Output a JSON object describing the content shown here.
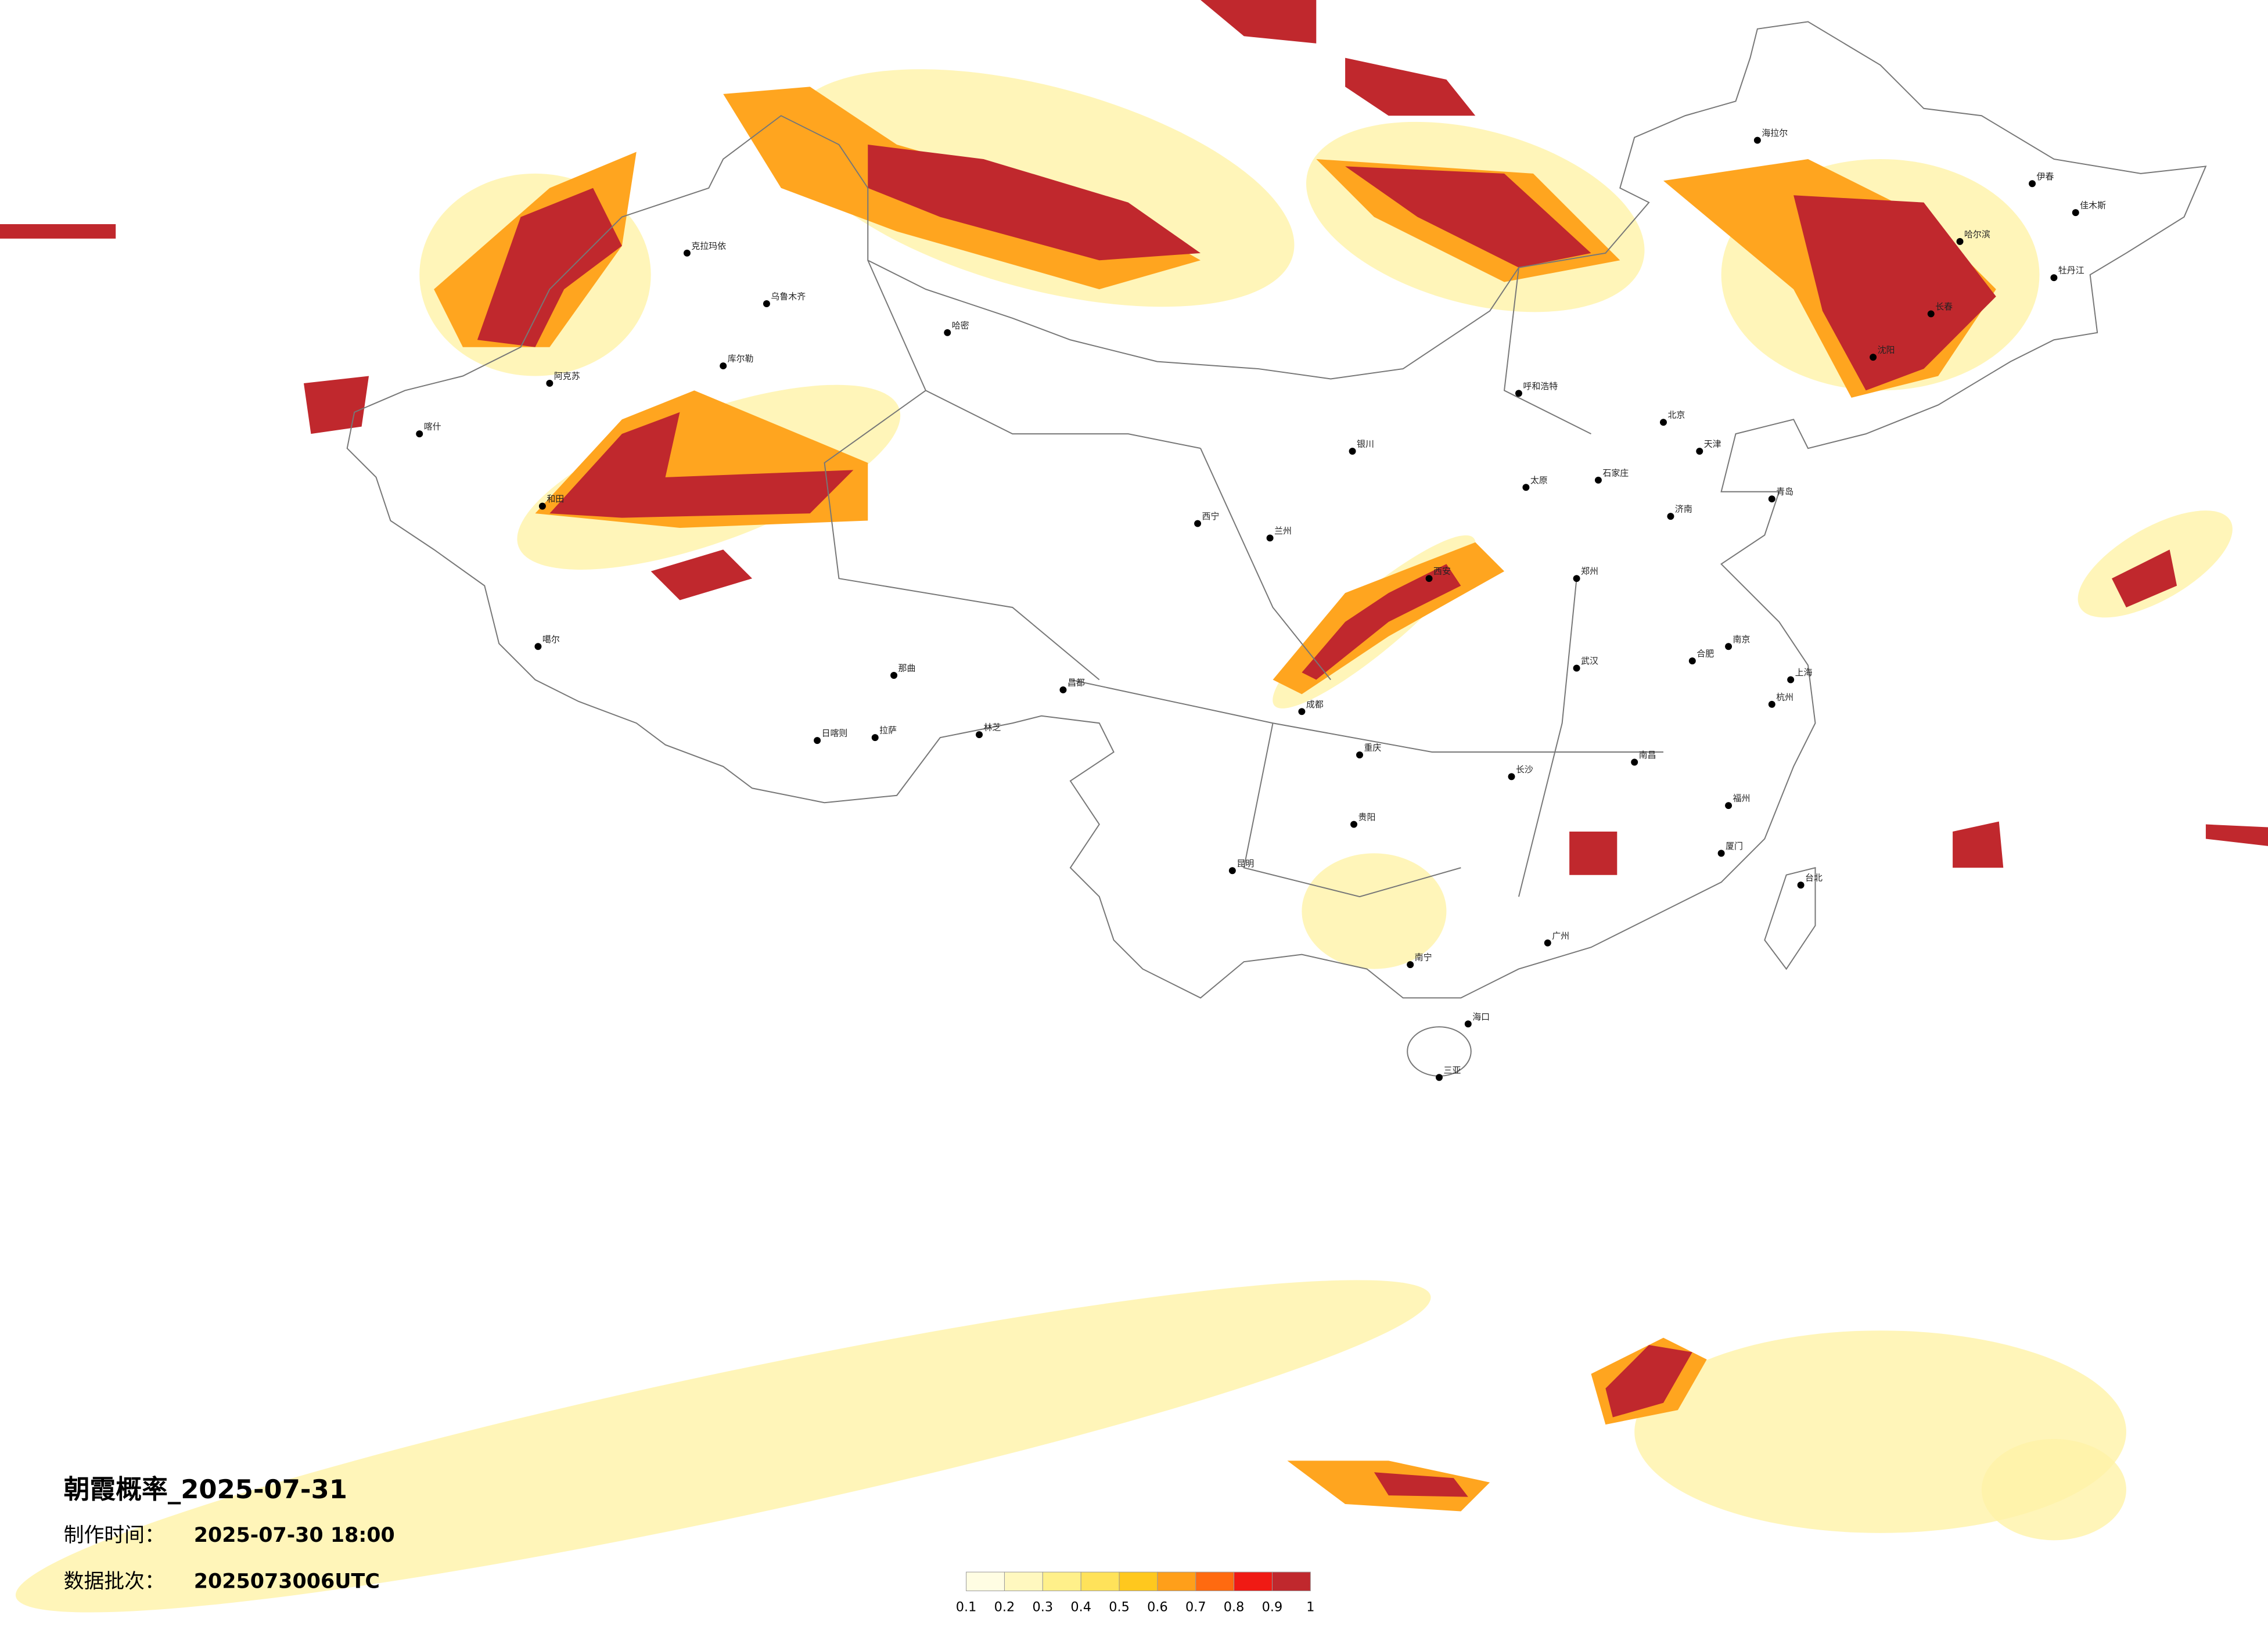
{
  "title": "朝霞概率_2025-07-31",
  "info": [
    {
      "label": "制作时间：",
      "value": "2025-07-30 18:00"
    },
    {
      "label": "数据批次：",
      "value": "2025073006UTC"
    }
  ],
  "legend": {
    "colors": [
      "#fffde3",
      "#fff8bf",
      "#fff08a",
      "#ffe25a",
      "#ffc81e",
      "#ff9f1a",
      "#ff6a10",
      "#f01a14",
      "#c0282d"
    ],
    "ticks": [
      0.1,
      0.2,
      0.3,
      0.4,
      0.5,
      0.6,
      0.7,
      0.8,
      0.9,
      1
    ]
  },
  "cities": [
    "乌鲁木齐",
    "克拉玛依",
    "哈密",
    "库尔勒",
    "阿克苏",
    "喀什",
    "和田",
    "噶尔",
    "拉萨",
    "日喀则",
    "林芝",
    "昌都",
    "那曲",
    "西宁",
    "兰州",
    "银川",
    "呼和浩特",
    "北京",
    "天津",
    "石家庄",
    "太原",
    "济南",
    "郑州",
    "西安",
    "武汉",
    "长沙",
    "南昌",
    "合肥",
    "南京",
    "杭州",
    "福州",
    "广州",
    "南宁",
    "海口",
    "三亚",
    "昆明",
    "贵阳",
    "成都",
    "重庆",
    "哈尔滨",
    "长春",
    "沈阳",
    "台北",
    "海拉尔",
    "伊春",
    "佳木斯",
    "牡丹江",
    "上海",
    "厦门",
    "青岛"
  ]
}
